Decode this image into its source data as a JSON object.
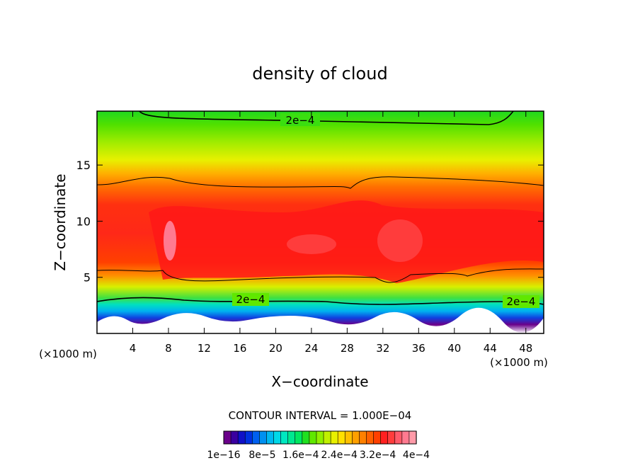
{
  "chart_data": {
    "type": "heatmap",
    "title": "density of cloud",
    "xlabel": "X−coordinate",
    "ylabel": "Z−coordinate",
    "x_units": "(×1000 m)",
    "y_units": "(×1000 m)",
    "xlim": [
      0,
      50
    ],
    "ylim": [
      0,
      19.8
    ],
    "x_ticks": [
      "4",
      "8",
      "12",
      "16",
      "20",
      "24",
      "28",
      "32",
      "36",
      "40",
      "44",
      "48"
    ],
    "y_ticks": [
      "5",
      "10",
      "15"
    ],
    "contour_interval_label": "CONTOUR INTERVAL = 1.000E−04",
    "contour_labels": [
      "2e−4",
      "2e−4",
      "2e−4"
    ],
    "colorbar_labels": [
      "1e−16",
      "8e−5",
      "1.6e−4",
      "2.4e−4",
      "3.2e−4",
      "4e−4"
    ],
    "colorbar_colors": [
      "#6a008a",
      "#3a00a0",
      "#1010c8",
      "#0030e0",
      "#0060f0",
      "#0090f0",
      "#00b8f0",
      "#00d8e8",
      "#00e8c0",
      "#00e890",
      "#00e860",
      "#20e020",
      "#60e800",
      "#90f000",
      "#c0f000",
      "#e8f000",
      "#ffe000",
      "#ffc000",
      "#ffa000",
      "#ff8000",
      "#ff6000",
      "#ff4000",
      "#ff2020",
      "#ff3c3c",
      "#ff5a6a",
      "#ff7a90",
      "#ff9aa8"
    ],
    "vertical_profile": [
      {
        "z": 0.3,
        "value": 0
      },
      {
        "z": 1.0,
        "value": 5e-05
      },
      {
        "z": 1.6,
        "value": 0.0001
      },
      {
        "z": 2.2,
        "value": 0.00015
      },
      {
        "z": 3.0,
        "value": 0.0002
      },
      {
        "z": 4.0,
        "value": 0.00025
      },
      {
        "z": 5.0,
        "value": 0.0003
      },
      {
        "z": 7.0,
        "value": 0.00034
      },
      {
        "z": 9.5,
        "value": 0.00036
      },
      {
        "z": 11.0,
        "value": 0.00034
      },
      {
        "z": 12.5,
        "value": 0.0003
      },
      {
        "z": 14.0,
        "value": 0.00027
      },
      {
        "z": 16.0,
        "value": 0.00024
      },
      {
        "z": 18.0,
        "value": 0.00021
      },
      {
        "z": 19.8,
        "value": 0.00019
      }
    ]
  }
}
